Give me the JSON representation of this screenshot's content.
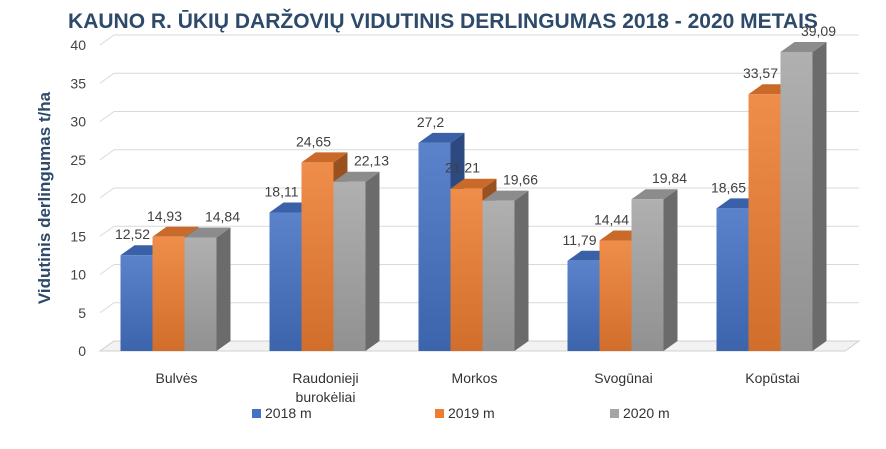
{
  "chart_data": {
    "type": "bar",
    "title": "KAUNO R. ŪKIŲ DARŽOVIŲ VIDUTINIS DERLINGUMAS 2018 - 2020  METAIS",
    "ylabel": "Vidutinis derlingumas t/ha",
    "xlabel": "",
    "ylim": [
      0,
      40
    ],
    "yticks": [
      "0",
      "5",
      "10",
      "15",
      "20",
      "25",
      "30",
      "35",
      "40"
    ],
    "categories": [
      [
        "Bulvės"
      ],
      [
        "Raudonieji",
        "burokėliai"
      ],
      [
        "Morkos"
      ],
      [
        "Svogūnai"
      ],
      [
        "Kopūstai"
      ]
    ],
    "series": [
      {
        "name": "2018 m",
        "color": "#4472c4",
        "values": [
          12.52,
          18.11,
          27.2,
          11.79,
          18.65
        ],
        "labels": [
          "12,52",
          "18,11",
          "27,2",
          "11,79",
          "18,65"
        ]
      },
      {
        "name": "2019 m",
        "color": "#ed7d31",
        "values": [
          14.93,
          24.65,
          21.21,
          14.44,
          33.57
        ],
        "labels": [
          "14,93",
          "24,65",
          "21,21",
          "14,44",
          "33,57"
        ]
      },
      {
        "name": "2020 m",
        "color": "#a5a5a5",
        "values": [
          14.84,
          22.13,
          19.66,
          19.84,
          39.09
        ],
        "labels": [
          "14,84",
          "22,13",
          "19,66",
          "19,84",
          "39,09"
        ]
      }
    ],
    "grid": true,
    "legend_position": "bottom"
  }
}
